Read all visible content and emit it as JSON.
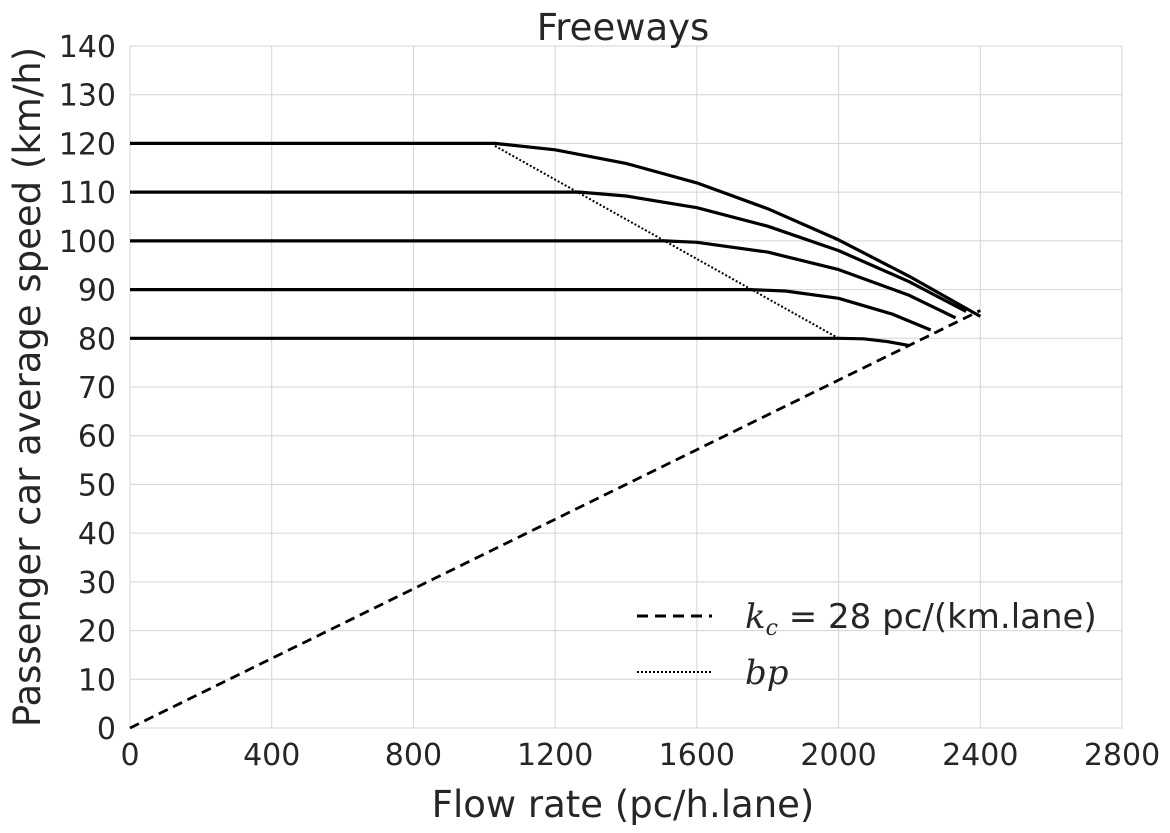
{
  "chart_data": {
    "type": "line",
    "title": "Freeways",
    "xlabel": "Flow rate (pc/h.lane)",
    "ylabel": "Passenger car average speed (km/h)",
    "xlim": [
      0,
      2800
    ],
    "ylim": [
      0,
      140
    ],
    "xticks": [
      0,
      400,
      800,
      1200,
      1600,
      2000,
      2400,
      2800
    ],
    "yticks": [
      0,
      10,
      20,
      30,
      40,
      50,
      60,
      70,
      80,
      90,
      100,
      110,
      120,
      130,
      140
    ],
    "grid": true,
    "legend_position": "lower-right",
    "series": [
      {
        "ffs": 120,
        "style": "solid",
        "points": [
          [
            0,
            120
          ],
          [
            1030,
            120
          ],
          [
            1200,
            118.7
          ],
          [
            1400,
            115.9
          ],
          [
            1600,
            111.9
          ],
          [
            1800,
            106.6
          ],
          [
            2000,
            100.2
          ],
          [
            2200,
            92.7
          ],
          [
            2400,
            84.5
          ]
        ]
      },
      {
        "ffs": 110,
        "style": "solid",
        "points": [
          [
            0,
            110
          ],
          [
            1270,
            110
          ],
          [
            1400,
            109.2
          ],
          [
            1600,
            106.8
          ],
          [
            1800,
            103
          ],
          [
            2000,
            98
          ],
          [
            2200,
            91.6
          ],
          [
            2360,
            85.5
          ]
        ]
      },
      {
        "ffs": 100,
        "style": "solid",
        "points": [
          [
            0,
            100
          ],
          [
            1510,
            100
          ],
          [
            1600,
            99.7
          ],
          [
            1800,
            97.7
          ],
          [
            2000,
            94.1
          ],
          [
            2200,
            88.8
          ],
          [
            2330,
            84.2
          ]
        ]
      },
      {
        "ffs": 90,
        "style": "solid",
        "points": [
          [
            0,
            90
          ],
          [
            1750,
            90
          ],
          [
            1850,
            89.7
          ],
          [
            2000,
            88.2
          ],
          [
            2150,
            85
          ],
          [
            2260,
            81.7
          ]
        ]
      },
      {
        "ffs": 80,
        "style": "solid",
        "points": [
          [
            0,
            80
          ],
          [
            2000,
            80
          ],
          [
            2070,
            79.9
          ],
          [
            2140,
            79.3
          ],
          [
            2200,
            78.5
          ]
        ]
      },
      {
        "name_math": "k",
        "name_sub": "c",
        "name_text": " = 28 pc/(km.lane)",
        "style": "dashed",
        "points": [
          [
            0,
            0
          ],
          [
            2400,
            85.7
          ]
        ]
      },
      {
        "name_math": "bp",
        "style": "dotted",
        "points": [
          [
            1030,
            119.5
          ],
          [
            2000,
            80
          ]
        ]
      }
    ]
  }
}
